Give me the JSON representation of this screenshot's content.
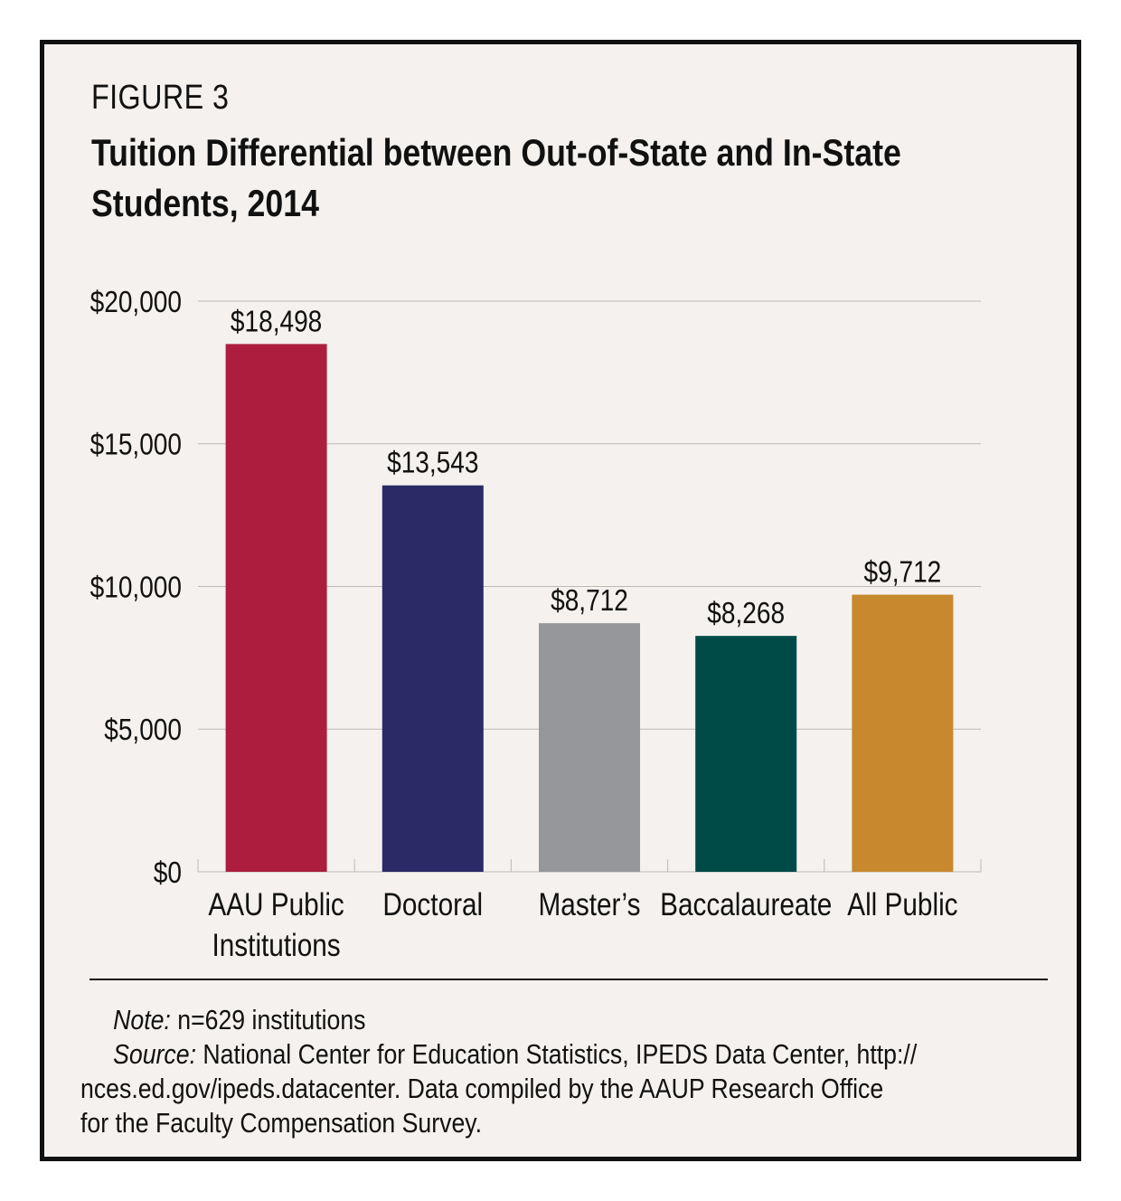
{
  "figure_label": "FIGURE 3",
  "title": "Tuition Differential between Out-of-State and In-State Students, 2014",
  "note_label": "Note:",
  "note_text": " n=629 institutions",
  "source_label": "Source:",
  "source_text_line1": " National Center for Education Statistics, IPEDS Data Center, http://",
  "source_text_line2": "nces.ed.gov/ipeds.datacenter. Data compiled by the AAUP Research Office",
  "source_text_line3": "for the Faculty Compensation Survey.",
  "chart_data": {
    "type": "bar",
    "categories": [
      [
        "AAU Public",
        "Institutions"
      ],
      [
        "Doctoral"
      ],
      [
        "Master’s"
      ],
      [
        "Baccalaureate"
      ],
      [
        "All Public"
      ]
    ],
    "values": [
      18498,
      13543,
      8712,
      8268,
      9712
    ],
    "value_labels": [
      "$18,498",
      "$13,543",
      "$8,712",
      "$8,268",
      "$9,712"
    ],
    "colors": [
      "#ad1e3e",
      "#2a2a66",
      "#96979b",
      "#004a47",
      "#c8882e"
    ],
    "yticks": [
      0,
      5000,
      10000,
      15000,
      20000
    ],
    "ytick_labels": [
      "$0",
      "$5,000",
      "$10,000",
      "$15,000",
      "$20,000"
    ],
    "ylim": [
      0,
      20000
    ],
    "grid": true,
    "xlabel": "",
    "ylabel": ""
  }
}
